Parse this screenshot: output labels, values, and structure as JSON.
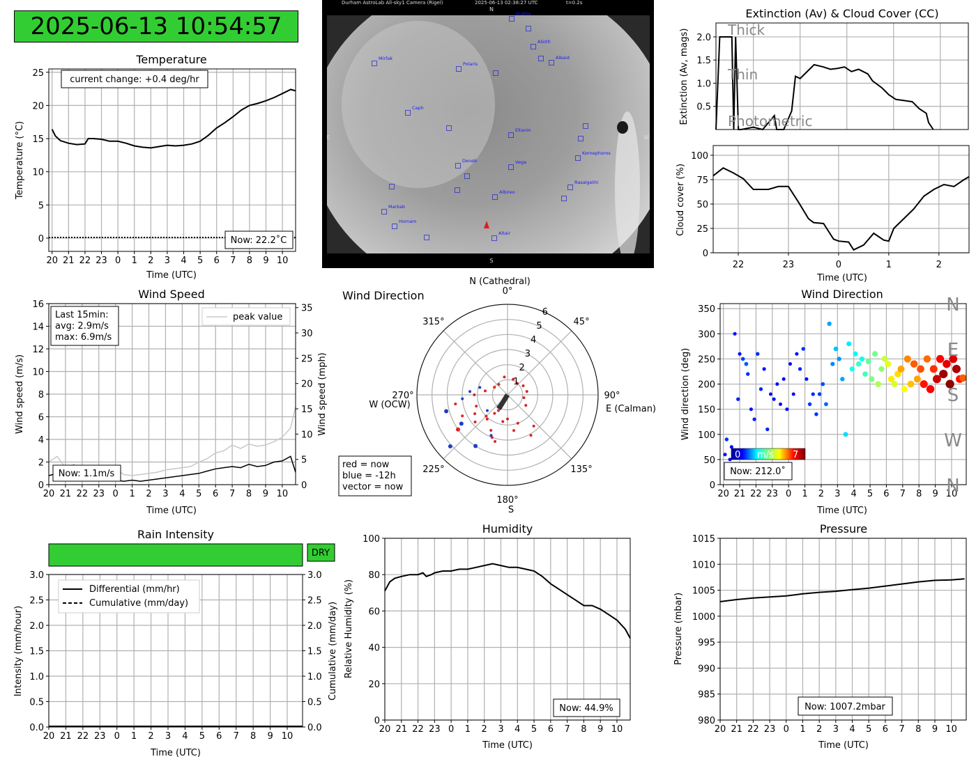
{
  "clock": "2025-06-13 10:54:57",
  "colors": {
    "rain_status_bg": "#32cd32",
    "clock_bg": "#32cd32",
    "peak": "#c8c8c8",
    "main_line": "#000000",
    "grid": "#b0b0b0"
  },
  "x_time_ticks": [
    "20",
    "21",
    "22",
    "23",
    "0",
    "1",
    "2",
    "3",
    "4",
    "5",
    "6",
    "7",
    "8",
    "9",
    "10"
  ],
  "temperature": {
    "title": "Temperature",
    "ylabel": "Temperature (°C)",
    "xlabel": "Time (UTC)",
    "annotation": "current change: +0.4 deg/hr",
    "now": "Now: 22.2˚C"
  },
  "camera": {
    "header_left": "Durham AstroLab All-sky1 Camera (Rigel)",
    "header_mid": "2025-06-13 02:38:27 UTC",
    "header_right": "t=0.2s",
    "dir_n": "N",
    "dir_s": "S",
    "dir_e": "E",
    "dir_w": "W",
    "stars": [
      "Dubhe",
      "Alioth",
      "Alkaid",
      "Mirfak",
      "Polaris",
      "Caph",
      "Eltanin",
      "Kornephoros",
      "Deneb",
      "Vega",
      "Rasalgethi",
      "Albireo",
      "Markab",
      "Homam",
      "Altair"
    ]
  },
  "extinction": {
    "title": "Extinction (Av) & Cloud Cover (CC)",
    "ylabel": "Extinction (Av, mags)",
    "labels": [
      "Thick",
      "Thin",
      "Photometric"
    ]
  },
  "cloud": {
    "ylabel": "Cloud cover (%)",
    "xlabel": "Time (UTC)",
    "x_ticks": [
      "22",
      "23",
      "0",
      "1",
      "2"
    ]
  },
  "wind_speed": {
    "title": "Wind Speed",
    "ylabel": "Wind speed (m/s)",
    "ylabel2": "Wind speed (mph)",
    "xlabel": "Time (UTC)",
    "stats": [
      "Last 15min:",
      "avg: 2.9m/s",
      "max: 6.9m/s"
    ],
    "legend": "peak value",
    "now": "Now: 1.1m/s"
  },
  "wind_polar": {
    "title": "Wind Direction",
    "n_label": "N (Cathedral)",
    "e_label": "E (Calman)",
    "w_label": "W (OCW)",
    "s_label": "S",
    "angle_labels": [
      "0°",
      "45°",
      "90°",
      "135°",
      "180°",
      "225°",
      "270°",
      "315°"
    ],
    "radial_labels": [
      "1",
      "2",
      "3",
      "4",
      "5",
      "6"
    ],
    "key": [
      "red = now",
      "blue = -12h",
      "vector = now"
    ]
  },
  "wind_dir_ts": {
    "title": "Wind Direction",
    "ylabel": "Wind direction (deg)",
    "xlabel": "Time (UTC)",
    "compass": [
      "N",
      "W",
      "S",
      "E",
      "N"
    ],
    "cbar_min": "0",
    "cbar_unit": "m/s",
    "cbar_max": "7",
    "now": "Now: 212.0˚"
  },
  "rain": {
    "title": "Rain Intensity",
    "status": "DRY",
    "ylabel": "Intensity (mm/hour)",
    "ylabel2": "Cumulative (mm/day)",
    "xlabel": "Time (UTC)",
    "legend": [
      "Differential (mm/hr)",
      "Cumulative (mm/day)"
    ]
  },
  "humidity": {
    "title": "Humidity",
    "ylabel": "Relative Humidity (%)",
    "xlabel": "Time (UTC)",
    "now": "Now: 44.9%"
  },
  "pressure": {
    "title": "Pressure",
    "ylabel": "Pressure (mbar)",
    "xlabel": "Time (UTC)",
    "now": "Now: 1007.2mbar"
  },
  "chart_data": [
    {
      "type": "line",
      "title": "Temperature",
      "xlabel": "Time (UTC)",
      "ylabel": "Temperature (°C)",
      "x_start": "20",
      "x_end": "10.8",
      "ylim": [
        -2,
        25.5
      ],
      "yticks": [
        0,
        5,
        10,
        15,
        20,
        25
      ],
      "grid": true,
      "x": [
        -4.0,
        -3.8,
        -3.5,
        -3.0,
        -2.5,
        -2.0,
        -1.8,
        -1.5,
        -1.0,
        -0.5,
        0.0,
        0.5,
        1.0,
        1.5,
        2.0,
        2.5,
        3.0,
        3.5,
        4.0,
        4.5,
        5.0,
        5.5,
        6.0,
        6.5,
        7.0,
        7.5,
        8.0,
        8.5,
        9.0,
        9.5,
        10.0,
        10.5,
        10.8
      ],
      "y": [
        16.4,
        15.4,
        14.7,
        14.3,
        14.1,
        14.2,
        15.0,
        15.0,
        14.9,
        14.6,
        14.6,
        14.3,
        13.9,
        13.7,
        13.6,
        13.8,
        14.0,
        13.9,
        14.0,
        14.2,
        14.6,
        15.5,
        16.6,
        17.4,
        18.3,
        19.3,
        20.0,
        20.3,
        20.7,
        21.2,
        21.8,
        22.4,
        22.2
      ],
      "reference_line": 0
    },
    {
      "type": "line",
      "title": "Extinction (Av) & Cloud Cover (CC)",
      "ylabel": "Extinction (Av, mags)",
      "ylim": [
        0,
        2.3
      ],
      "yticks": [
        0.5,
        1.0,
        1.5,
        2.0
      ],
      "x": [
        -2.8,
        -2.72,
        -2.6,
        -2.46,
        -2.42,
        -2.38,
        -2.32,
        -2.26,
        -2.0,
        -1.8,
        -1.55,
        -1.5,
        -1.35,
        -1.18,
        -1.1,
        -1.0,
        -0.95,
        -0.8,
        -0.7,
        -0.5,
        -0.35,
        -0.2,
        -0.05,
        0.1,
        0.25,
        0.45,
        0.55,
        0.75,
        0.9,
        1.05,
        1.2,
        1.4,
        1.55,
        1.7,
        1.75,
        1.85
      ],
      "y": [
        0,
        2.0,
        2.0,
        2.0,
        0,
        2.0,
        0,
        0,
        0.05,
        0,
        0.3,
        0,
        0,
        0.4,
        1.15,
        1.1,
        1.15,
        1.3,
        1.4,
        1.35,
        1.3,
        1.32,
        1.35,
        1.25,
        1.3,
        1.2,
        1.05,
        0.9,
        0.75,
        0.65,
        0.63,
        0.6,
        0.45,
        0.35,
        0.15,
        0.0
      ]
    },
    {
      "type": "line",
      "ylabel": "Cloud cover (%)",
      "xlabel": "Time (UTC)",
      "ylim": [
        0,
        110
      ],
      "yticks": [
        0,
        25,
        50,
        75,
        100
      ],
      "x": [
        -2.5,
        -2.3,
        -2.1,
        -1.9,
        -1.7,
        -1.4,
        -1.2,
        -1.0,
        -0.8,
        -0.6,
        -0.5,
        -0.3,
        -0.1,
        0.0,
        0.2,
        0.3,
        0.5,
        0.7,
        0.9,
        1.0,
        1.1,
        1.3,
        1.5,
        1.7,
        1.9,
        2.1,
        2.3,
        2.5,
        2.6
      ],
      "y": [
        79,
        87,
        82,
        76,
        65,
        65,
        68,
        68,
        52,
        35,
        31,
        30,
        14,
        12,
        11,
        3,
        8,
        20,
        13,
        12,
        25,
        35,
        45,
        58,
        65,
        70,
        68,
        75,
        78
      ]
    },
    {
      "type": "line",
      "title": "Wind Speed",
      "xlabel": "Time (UTC)",
      "ylabel": "Wind speed (m/s)",
      "ylim": [
        0,
        16
      ],
      "yticks": [
        0,
        2,
        4,
        6,
        8,
        10,
        12,
        14,
        16
      ],
      "y2label": "Wind speed (mph)",
      "y2ticks": [
        0,
        5,
        10,
        15,
        20,
        25,
        30,
        35
      ],
      "series": [
        {
          "name": "peak value",
          "x": [
            -4.0,
            -3.5,
            -3.0,
            -2.5,
            -2.0,
            -1.5,
            -1.0,
            -0.5,
            0.0,
            0.5,
            1.0,
            1.5,
            2.0,
            2.5,
            3.0,
            3.5,
            4.0,
            4.5,
            5.0,
            5.5,
            6.0,
            6.5,
            7.0,
            7.5,
            8.0,
            8.5,
            9.0,
            9.5,
            10.0,
            10.5,
            10.8
          ],
          "y": [
            2.0,
            2.5,
            1.5,
            1.8,
            1.2,
            1.5,
            1.0,
            1.2,
            1.4,
            0.9,
            0.8,
            0.9,
            1.0,
            1.1,
            1.3,
            1.4,
            1.5,
            1.6,
            2.0,
            2.3,
            2.8,
            3.0,
            3.5,
            3.2,
            3.6,
            3.4,
            3.5,
            3.8,
            4.2,
            5.0,
            6.9
          ]
        },
        {
          "x": [
            -4.0,
            -3.5,
            -3.0,
            -2.5,
            -2.0,
            -1.5,
            -1.0,
            -0.5,
            0.0,
            0.5,
            1.0,
            1.5,
            2.0,
            2.5,
            3.0,
            3.5,
            4.0,
            4.5,
            5.0,
            5.5,
            6.0,
            6.5,
            7.0,
            7.5,
            8.0,
            8.5,
            9.0,
            9.5,
            10.0,
            10.5,
            10.8
          ],
          "y": [
            0.8,
            1.0,
            0.7,
            0.9,
            0.5,
            0.8,
            0.6,
            0.7,
            0.4,
            0.3,
            0.4,
            0.3,
            0.4,
            0.5,
            0.6,
            0.7,
            0.8,
            0.9,
            1.0,
            1.2,
            1.4,
            1.5,
            1.6,
            1.5,
            1.8,
            1.6,
            1.7,
            2.0,
            2.1,
            2.5,
            1.1
          ]
        }
      ]
    },
    {
      "type": "scatter",
      "title": "Wind Direction",
      "coordinates": "polar",
      "theta_labels": [
        "0°",
        "45°",
        "90°",
        "135°",
        "180°",
        "225°",
        "270°",
        "315°"
      ],
      "r_ticks": [
        1,
        2,
        3,
        4,
        5,
        6
      ],
      "rlim": [
        0,
        6
      ],
      "note": "red = now, blue = -12h",
      "points_theta_deg": [
        210,
        225,
        240,
        200,
        190,
        230,
        260,
        250,
        215,
        205,
        195,
        235,
        245,
        220,
        180,
        170,
        160,
        150,
        140,
        120,
        100,
        80,
        60,
        40,
        20,
        350,
        320,
        300,
        280,
        270,
        255,
        265,
        275,
        285,
        228,
        238,
        212,
        202,
        218,
        232
      ],
      "points_r": [
        1.2,
        2.0,
        2.5,
        3.0,
        1.8,
        2.8,
        3.5,
        2.2,
        1.5,
        2.6,
        3.2,
        4.0,
        3.3,
        2.1,
        1.6,
        2.4,
        2.0,
        3.1,
        2.7,
        1.4,
        1.1,
        1.3,
        1.2,
        1.0,
        1.1,
        1.2,
        0.9,
        1.0,
        1.5,
        2.2,
        4.2,
        3.0,
        2.5,
        1.9,
        5.1,
        3.6,
        4.0,
        2.9,
        1.0,
        1.7
      ],
      "vector_theta_deg": 212,
      "vector_r": 1.1
    },
    {
      "type": "scatter",
      "title": "Wind Direction",
      "xlabel": "Time (UTC)",
      "ylabel": "Wind direction (deg)",
      "ylim": [
        0,
        360
      ],
      "yticks": [
        0,
        50,
        100,
        150,
        200,
        250,
        300,
        350
      ],
      "colorbar": {
        "min": 0,
        "max": 7,
        "unit": "m/s"
      },
      "x": [
        -3.9,
        -3.8,
        -3.6,
        -3.5,
        -3.3,
        -3.1,
        -3.0,
        -2.8,
        -2.6,
        -2.5,
        -2.3,
        -2.1,
        -1.9,
        -1.7,
        -1.5,
        -1.3,
        -1.1,
        -0.9,
        -0.7,
        -0.5,
        -0.3,
        -0.1,
        0.1,
        0.3,
        0.5,
        0.7,
        0.9,
        1.1,
        1.3,
        1.5,
        1.7,
        1.9,
        2.1,
        2.3,
        2.5,
        2.7,
        2.9,
        3.1,
        3.3,
        3.5,
        3.7,
        3.9,
        4.1,
        4.3,
        4.5,
        4.7,
        4.9,
        5.1,
        5.3,
        5.5,
        5.7,
        5.9,
        6.1,
        6.3,
        6.5,
        6.7,
        6.9,
        7.1,
        7.3,
        7.5,
        7.7,
        7.9,
        8.1,
        8.3,
        8.5,
        8.7,
        8.9,
        9.1,
        9.3,
        9.5,
        9.7,
        9.9,
        10.1,
        10.3,
        10.5,
        10.7
      ],
      "y": [
        60,
        90,
        50,
        75,
        300,
        170,
        260,
        250,
        240,
        220,
        150,
        130,
        260,
        190,
        230,
        110,
        180,
        170,
        200,
        160,
        210,
        150,
        240,
        180,
        260,
        230,
        270,
        210,
        160,
        180,
        140,
        180,
        200,
        160,
        320,
        240,
        270,
        250,
        210,
        100,
        280,
        230,
        260,
        240,
        250,
        220,
        245,
        210,
        260,
        200,
        230,
        250,
        240,
        210,
        200,
        220,
        230,
        190,
        250,
        200,
        240,
        210,
        230,
        200,
        250,
        190,
        230,
        210,
        250,
        220,
        240,
        200,
        250,
        230,
        210,
        212
      ],
      "speed": [
        1.0,
        1.2,
        0.8,
        0.9,
        1.0,
        1.1,
        1.0,
        1.3,
        1.5,
        1.2,
        1.0,
        1.1,
        1.2,
        1.1,
        1.0,
        1.1,
        0.9,
        1.0,
        0.9,
        0.8,
        0.9,
        1.0,
        0.8,
        0.9,
        1.0,
        1.1,
        1.2,
        1.0,
        1.3,
        1.1,
        1.2,
        1.3,
        1.4,
        1.6,
        2.0,
        1.8,
        2.2,
        1.9,
        2.0,
        2.4,
        2.5,
        2.8,
        2.6,
        3.0,
        2.7,
        3.1,
        3.3,
        3.5,
        3.4,
        3.8,
        3.6,
        4.0,
        4.2,
        4.5,
        4.1,
        4.6,
        5.0,
        4.4,
        5.2,
        4.8,
        5.5,
        5.0,
        5.6,
        6.0,
        5.4,
        6.2,
        5.8,
        6.5,
        6.1,
        6.8,
        6.3,
        6.9,
        6.4,
        6.7,
        6.0,
        5.5
      ],
      "compass_labels": [
        "N",
        "W",
        "S",
        "E",
        "N"
      ]
    },
    {
      "type": "line",
      "title": "Rain Intensity",
      "xlabel": "Time (UTC)",
      "ylabel": "Intensity (mm/hour)",
      "y2label": "Cumulative (mm/day)",
      "ylim": [
        0,
        3.0
      ],
      "yticks": [
        0.0,
        0.5,
        1.0,
        1.5,
        2.0,
        2.5,
        3.0
      ],
      "series": [
        {
          "name": "Differential (mm/hr)",
          "x": [
            -4.0,
            10.8
          ],
          "y": [
            0.0,
            0.0
          ]
        },
        {
          "name": "Cumulative (mm/day)",
          "x": [
            -4.0,
            10.8
          ],
          "y": [
            0.0,
            0.0
          ]
        }
      ]
    },
    {
      "type": "line",
      "title": "Humidity",
      "xlabel": "Time (UTC)",
      "ylabel": "Relative Humidity (%)",
      "ylim": [
        0,
        100
      ],
      "yticks": [
        0,
        20,
        40,
        60,
        80,
        100
      ],
      "x": [
        -4.0,
        -3.7,
        -3.4,
        -3.0,
        -2.5,
        -2.0,
        -1.7,
        -1.5,
        -1.2,
        -1.0,
        -0.5,
        0.0,
        0.5,
        1.0,
        1.5,
        2.0,
        2.5,
        3.0,
        3.5,
        4.0,
        4.5,
        5.0,
        5.5,
        6.0,
        6.5,
        7.0,
        7.5,
        8.0,
        8.5,
        9.0,
        9.5,
        10.0,
        10.5,
        10.8
      ],
      "y": [
        71,
        76,
        78,
        79,
        80,
        80,
        81,
        79,
        80,
        81,
        82,
        82,
        83,
        83,
        84,
        85,
        86,
        85,
        84,
        84,
        83,
        82,
        79,
        75,
        72,
        69,
        66,
        63,
        63,
        61,
        58,
        55,
        50,
        45
      ]
    },
    {
      "type": "line",
      "title": "Pressure",
      "xlabel": "Time (UTC)",
      "ylabel": "Pressure (mbar)",
      "ylim": [
        980,
        1015
      ],
      "yticks": [
        980,
        985,
        990,
        995,
        1000,
        1005,
        1010,
        1015
      ],
      "x": [
        -4.0,
        -3.0,
        -2.0,
        -1.0,
        0.0,
        1.0,
        2.0,
        3.0,
        4.0,
        5.0,
        6.0,
        7.0,
        8.0,
        9.0,
        10.0,
        10.8
      ],
      "y": [
        1002.8,
        1003.2,
        1003.5,
        1003.7,
        1003.9,
        1004.3,
        1004.6,
        1004.8,
        1005.1,
        1005.4,
        1005.8,
        1006.2,
        1006.6,
        1006.9,
        1007.0,
        1007.2
      ]
    }
  ]
}
